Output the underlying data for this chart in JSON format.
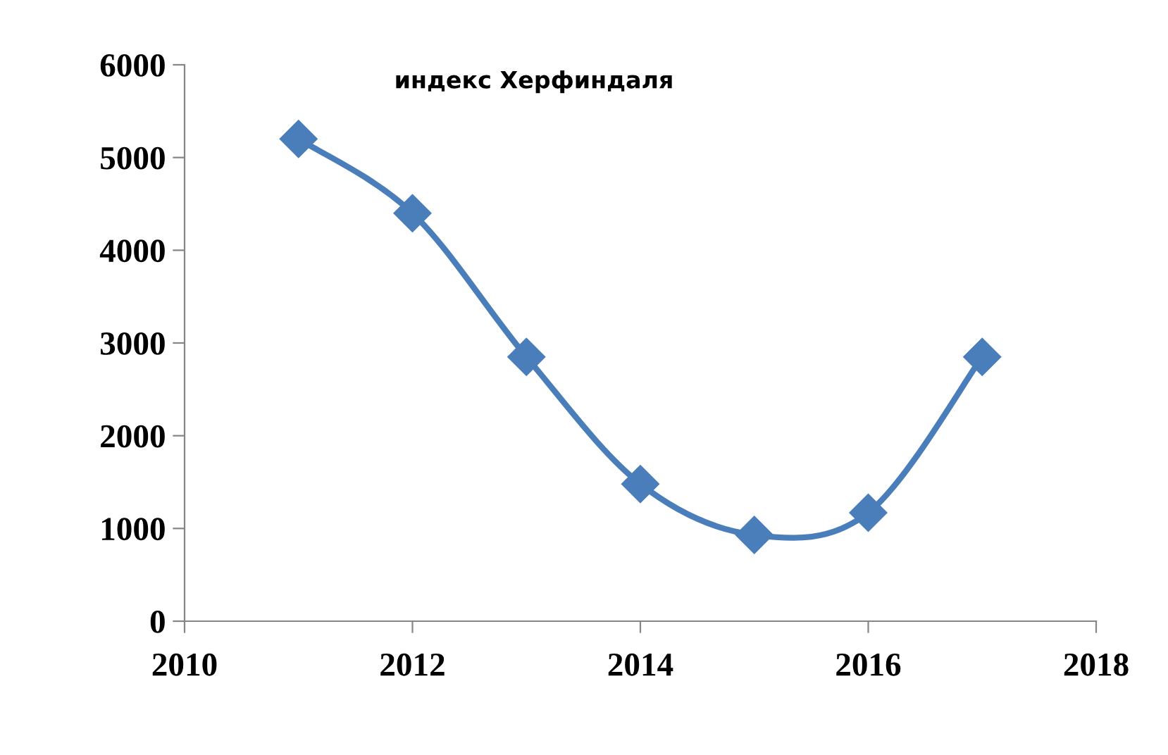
{
  "chart_data": {
    "type": "line",
    "title": "индекс Херфиндаля",
    "x": [
      2011,
      2012,
      2013,
      2014,
      2015,
      2016,
      2017
    ],
    "series": [
      {
        "color": "#4a7ebb",
        "values": [
          5200,
          4400,
          2850,
          1480,
          930,
          1170,
          2850
        ]
      }
    ],
    "xlim": [
      2010,
      2018
    ],
    "xticks": [
      2010,
      2012,
      2014,
      2016,
      2018
    ],
    "ylim": [
      0,
      6000
    ],
    "yticks": [
      0,
      1000,
      2000,
      3000,
      4000,
      5000,
      6000
    ],
    "grid": false,
    "legend": false,
    "marker": "diamond",
    "line_style": "solid"
  }
}
